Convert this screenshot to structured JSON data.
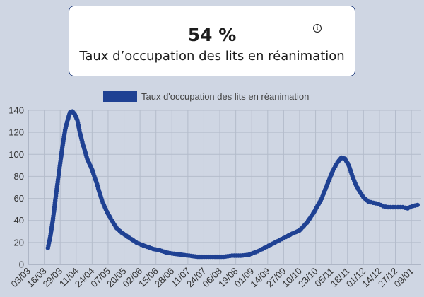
{
  "kpi": {
    "value": "54 %",
    "label": "Taux d’occupation des lits en réanimation",
    "info_icon": "info-icon"
  },
  "chart_data": {
    "type": "line",
    "title": "",
    "xlabel": "",
    "ylabel": "",
    "legend": {
      "position": "top-center"
    },
    "grid": true,
    "ylim": [
      0,
      140
    ],
    "yticks": [
      0,
      20,
      40,
      60,
      80,
      100,
      120,
      140
    ],
    "xticks": [
      "03/03",
      "16/03",
      "29/03",
      "11/04",
      "24/04",
      "07/05",
      "20/05",
      "02/06",
      "15/06",
      "28/06",
      "11/07",
      "24/07",
      "06/08",
      "19/08",
      "01/09",
      "14/09",
      "27/09",
      "10/10",
      "23/10",
      "05/11",
      "18/11",
      "01/12",
      "14/12",
      "27/12",
      "09/01"
    ],
    "series_color": "#1f4193",
    "series": [
      {
        "name": "Taux d'occupation des lits en réanimation",
        "x": [
          "19/03",
          "21/03",
          "23/03",
          "25/03",
          "27/03",
          "29/03",
          "31/03",
          "02/04",
          "04/04",
          "06/04",
          "08/04",
          "10/04",
          "12/04",
          "14/04",
          "16/04",
          "20/04",
          "24/04",
          "28/04",
          "02/05",
          "06/05",
          "10/05",
          "14/05",
          "18/05",
          "22/05",
          "26/05",
          "30/05",
          "03/06",
          "08/06",
          "13/06",
          "18/06",
          "23/06",
          "28/06",
          "05/07",
          "12/07",
          "19/07",
          "26/07",
          "02/08",
          "09/08",
          "16/08",
          "23/08",
          "30/08",
          "06/09",
          "13/09",
          "20/09",
          "27/09",
          "04/10",
          "10/10",
          "16/10",
          "22/10",
          "28/10",
          "02/11",
          "06/11",
          "10/11",
          "13/11",
          "16/11",
          "19/11",
          "22/11",
          "25/11",
          "28/11",
          "01/12",
          "05/12",
          "09/12",
          "13/12",
          "17/12",
          "21/12",
          "25/12",
          "29/12",
          "02/01",
          "06/01",
          "10/01",
          "14/01"
        ],
        "y": [
          15,
          26,
          40,
          58,
          75,
          92,
          108,
          122,
          131,
          138,
          139,
          136,
          131,
          120,
          111,
          96,
          86,
          73,
          58,
          48,
          40,
          33,
          29,
          26,
          23,
          20,
          18,
          16,
          14,
          13,
          11,
          10,
          9,
          8,
          7,
          7,
          7,
          7,
          8,
          8,
          9,
          12,
          16,
          20,
          24,
          28,
          31,
          38,
          48,
          60,
          74,
          85,
          93,
          97,
          96,
          90,
          80,
          72,
          66,
          61,
          57,
          56,
          55,
          53,
          52,
          52,
          52,
          52,
          51,
          53,
          54
        ]
      }
    ]
  }
}
